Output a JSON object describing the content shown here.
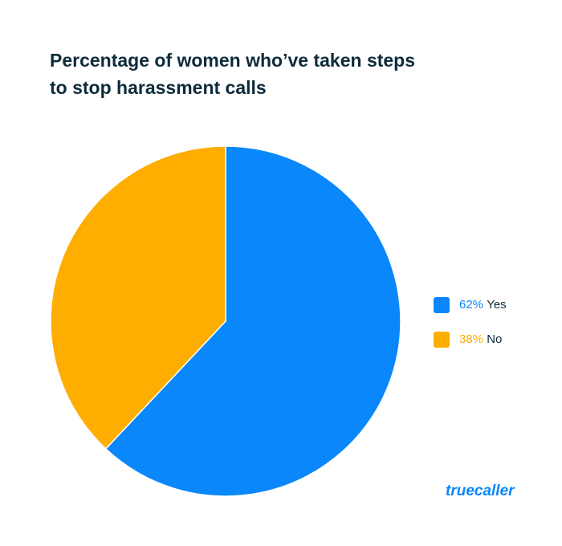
{
  "chart_data": {
    "type": "pie",
    "title": "Percentage of women who’ve taken steps to stop harassment calls",
    "categories": [
      "Yes",
      "No"
    ],
    "values": [
      62,
      38
    ],
    "value_labels": [
      "62%",
      "38%"
    ],
    "colors": [
      "#0a87fa",
      "#ffad00"
    ],
    "legend": "right",
    "brand": "truecaller"
  }
}
